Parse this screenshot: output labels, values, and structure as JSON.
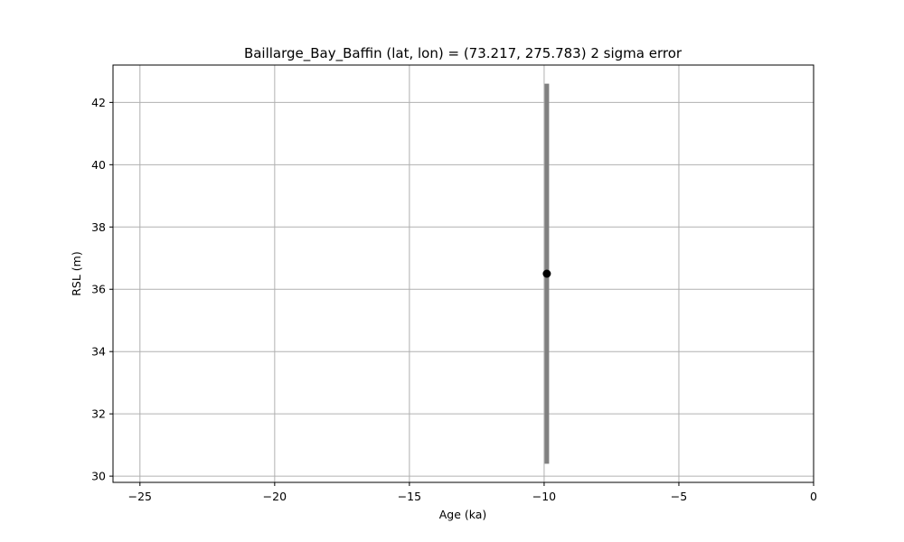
{
  "chart_data": {
    "type": "scatter",
    "title": "Baillarge_Bay_Baffin (lat, lon) = (73.217, 275.783)  2 sigma error",
    "xlabel": "Age (ka)",
    "ylabel": "RSL (m)",
    "xlim": [
      -26,
      0
    ],
    "ylim": [
      29.8,
      43.2
    ],
    "xticks": [
      -25,
      -20,
      -15,
      -10,
      -5,
      0
    ],
    "xtick_labels": [
      "−25",
      "−20",
      "−15",
      "−10",
      "−5",
      "0"
    ],
    "yticks": [
      30,
      32,
      34,
      36,
      38,
      40,
      42
    ],
    "ytick_labels": [
      "30",
      "32",
      "34",
      "36",
      "38",
      "40",
      "42"
    ],
    "grid": true,
    "legend": "none",
    "points": [
      {
        "x": -9.9,
        "y": 36.5,
        "y_err_low": 30.4,
        "y_err_high": 42.6
      }
    ],
    "colors": {
      "point": "#000000",
      "error_bar": "#808080",
      "grid": "#b0b0b0",
      "axes": "#000000"
    }
  }
}
